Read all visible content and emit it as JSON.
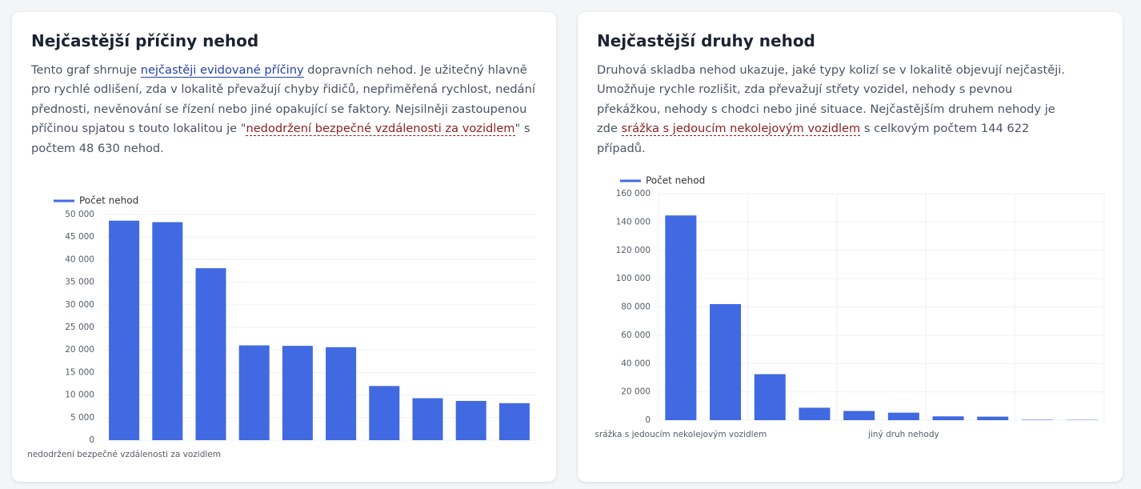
{
  "chart_data": [
    {
      "type": "bar",
      "title": "Nejčastější příčiny nehod",
      "description": [
        "Tento graf shrnuje ",
        "nejčastěji evidované příčiny",
        " dopravních nehod. Je užitečný hlavně pro rychlé odlišení, zda v lokalitě převažují chyby řidičů, nepřiměřená rychlost, nedání přednosti, nevěnování se řízení nebo jiné opakující se faktory. Nejsilněji zastoupenou příčinou spjatou s touto lokalitou je \"",
        "nedodržení bezpečné vzdálenosti za vozidlem",
        "\" s počtem 48 630 nehod."
      ],
      "categories": [
        "nedodržení bezpečné vzdálenosti za vozidlem",
        null,
        null,
        null,
        null,
        null,
        null,
        null,
        null,
        null
      ],
      "series": [
        {
          "name": "Počet nehod",
          "color": "#4169e1",
          "values": [
            48630,
            48300,
            38100,
            21000,
            20900,
            20600,
            12000,
            9300,
            8700,
            8200
          ]
        }
      ],
      "ylim": [
        0,
        50000
      ],
      "yticks": [
        0,
        {
          "value": 5000,
          "label": "5 000"
        },
        {
          "value": 10000,
          "label": "10 000"
        },
        {
          "value": 15000,
          "label": "15 000"
        },
        {
          "value": 20000,
          "label": "20 000"
        },
        {
          "value": 25000,
          "label": "25 000"
        },
        {
          "value": 30000,
          "label": "30 000"
        },
        {
          "value": 35000,
          "label": "35 000"
        },
        {
          "value": 40000,
          "label": "40 000"
        },
        {
          "value": 45000,
          "label": "45 000"
        },
        {
          "value": 50000,
          "label": "50 000"
        }
      ],
      "grid": true,
      "xgrid": false
    },
    {
      "type": "bar",
      "title": "Nejčastější druhy nehod",
      "description": [
        "Druhová skladba nehod ukazuje, jaké typy kolizí se v lokalitě objevují nejčastěji. Umožňuje rychle rozlišit, zda převažují střety vozidel, nehody s pevnou překážkou, nehody s chodci nebo jiné situace. Nejčastějším druhem nehody je zde ",
        "srážka s jedoucím nekolejovým vozidlem",
        " s celkovým počtem 144 622 případů."
      ],
      "categories": [
        "srážka s jedoucím nekolejovým vozidlem",
        null,
        null,
        null,
        null,
        "jiný druh nehody",
        null,
        null,
        null,
        null
      ],
      "series": [
        {
          "name": "Počet nehod",
          "color": "#4169e1",
          "values": [
            144622,
            82000,
            32500,
            8800,
            6500,
            5300,
            2700,
            2500,
            300,
            200
          ]
        }
      ],
      "ylim": [
        0,
        160000
      ],
      "yticks": [
        0,
        {
          "value": 20000,
          "label": "20 000"
        },
        {
          "value": 40000,
          "label": "40 000"
        },
        {
          "value": 60000,
          "label": "60 000"
        },
        {
          "value": 80000,
          "label": "80 000"
        },
        {
          "value": 100000,
          "label": "100 000"
        },
        {
          "value": 120000,
          "label": "120 000"
        },
        {
          "value": 140000,
          "label": "140 000"
        },
        {
          "value": 160000,
          "label": "160 000"
        }
      ],
      "grid": true,
      "xgrid": true
    }
  ]
}
